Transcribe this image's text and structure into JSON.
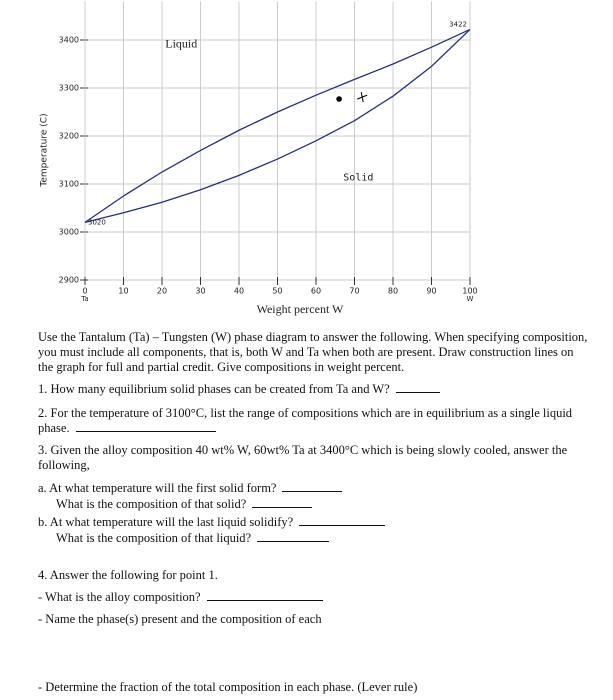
{
  "chart_data": {
    "type": "line",
    "xlabel": "Weight percent W",
    "ylabel": "Temperature (C)",
    "x": [
      0,
      10,
      20,
      30,
      40,
      50,
      60,
      70,
      80,
      90,
      100
    ],
    "series": [
      {
        "color": "#243078",
        "values": [
          3020,
          3075,
          3125,
          3170,
          3212,
          3250,
          3285,
          3318,
          3350,
          3385,
          3422
        ]
      },
      {
        "color": "#243078",
        "values": [
          3020,
          3040,
          3062,
          3088,
          3118,
          3152,
          3190,
          3232,
          3283,
          3345,
          3422
        ]
      }
    ],
    "points": [
      {
        "x": 66,
        "y": 3277,
        "marker": "dot"
      },
      {
        "x": 72,
        "y": 3281,
        "marker": "plus"
      }
    ],
    "xlim": [
      0,
      100
    ],
    "ylim": [
      2900,
      3480
    ],
    "xticks": [
      0,
      10,
      20,
      30,
      40,
      50,
      60,
      70,
      80,
      90,
      100
    ],
    "yticks": [
      2900,
      3000,
      3100,
      3200,
      3300,
      3400
    ],
    "grid": true,
    "annotations": [
      {
        "text": "Liquid",
        "x": 25,
        "y": 3390
      },
      {
        "text": "Solid",
        "x": 71,
        "y": 3114
      },
      {
        "text": "3020",
        "x": 0,
        "y": 3020
      },
      {
        "text": "3422",
        "x": 100,
        "y": 3422
      },
      {
        "text": "Ta",
        "x": 0,
        "y": 2860
      },
      {
        "text": "W",
        "x": 100,
        "y": 2860
      }
    ]
  },
  "document": {
    "intro": "Use the Tantalum (Ta) – Tungsten (W) phase diagram to answer the following.  When specifying composition, you must include all components, that is, both W and Ta when both are present.  Draw construction lines on the graph for full and partial credit.  Give compositions in weight percent.",
    "q1": "1.  How many equilibrium solid phases can be created from Ta and W?",
    "q2": "2.  For the temperature of 3100°C, list the range of compositions which are in equilibrium as a single liquid phase.",
    "q3": "3.  Given the alloy composition 40 wt% W, 60wt% Ta at 3400°C which is being slowly cooled, answer the following,",
    "q3a": "a.  At what temperature will the first solid form?",
    "q3a2": "What is the composition of that solid?",
    "q3b": "b.  At what temperature will the last liquid solidify?",
    "q3b2": "What is the composition of that liquid?",
    "q4": "4.  Answer the following for point 1.",
    "q4a": "- What is the alloy composition?",
    "q4b": "- Name the phase(s) present and the composition of each",
    "q4c": "- Determine the fraction of the total composition in each phase.   (Lever rule)"
  }
}
